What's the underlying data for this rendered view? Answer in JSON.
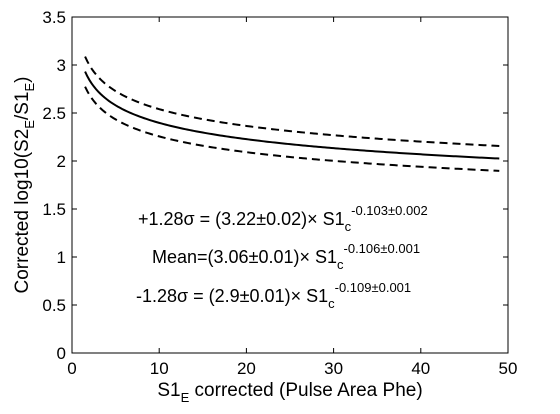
{
  "chart_data": {
    "type": "line",
    "xlabel": {
      "main": "S1",
      "sub": "E",
      "rest": " corrected (Pulse Area Phe)"
    },
    "ylabel": {
      "pre": "Corrected log10(S2",
      "sub1": "E",
      "mid": "/S1",
      "sub2": "E",
      "post": ")"
    },
    "xlim": [
      0,
      50
    ],
    "ylim": [
      0,
      3.5
    ],
    "xticks": [
      "0",
      "10",
      "20",
      "30",
      "40",
      "50"
    ],
    "yticks": [
      "0",
      "0.5",
      "1",
      "1.5",
      "2",
      "2.5",
      "3",
      "3.5"
    ],
    "grid": false,
    "x": [
      1.5,
      3,
      5,
      7,
      10,
      13,
      16,
      20,
      25,
      30,
      35,
      40,
      45,
      49
    ],
    "series": [
      {
        "style": "dashed",
        "a": 3.22,
        "b": -0.103
      },
      {
        "style": "solid",
        "a": 3.06,
        "b": -0.106
      },
      {
        "style": "dashed",
        "a": 2.9,
        "b": -0.109
      }
    ],
    "annotations": [
      {
        "main": "+1.28σ = (3.22±0.02)× S1",
        "sub": "c",
        "sup": "-0.103±0.002"
      },
      {
        "main": "Mean=(3.06±0.01)× S1",
        "sub": "c",
        "sup": "-0.106±0.001"
      },
      {
        "main": "-1.28σ = (2.9±0.01)× S1",
        "sub": "c",
        "sup": "-0.109±0.001"
      }
    ]
  }
}
